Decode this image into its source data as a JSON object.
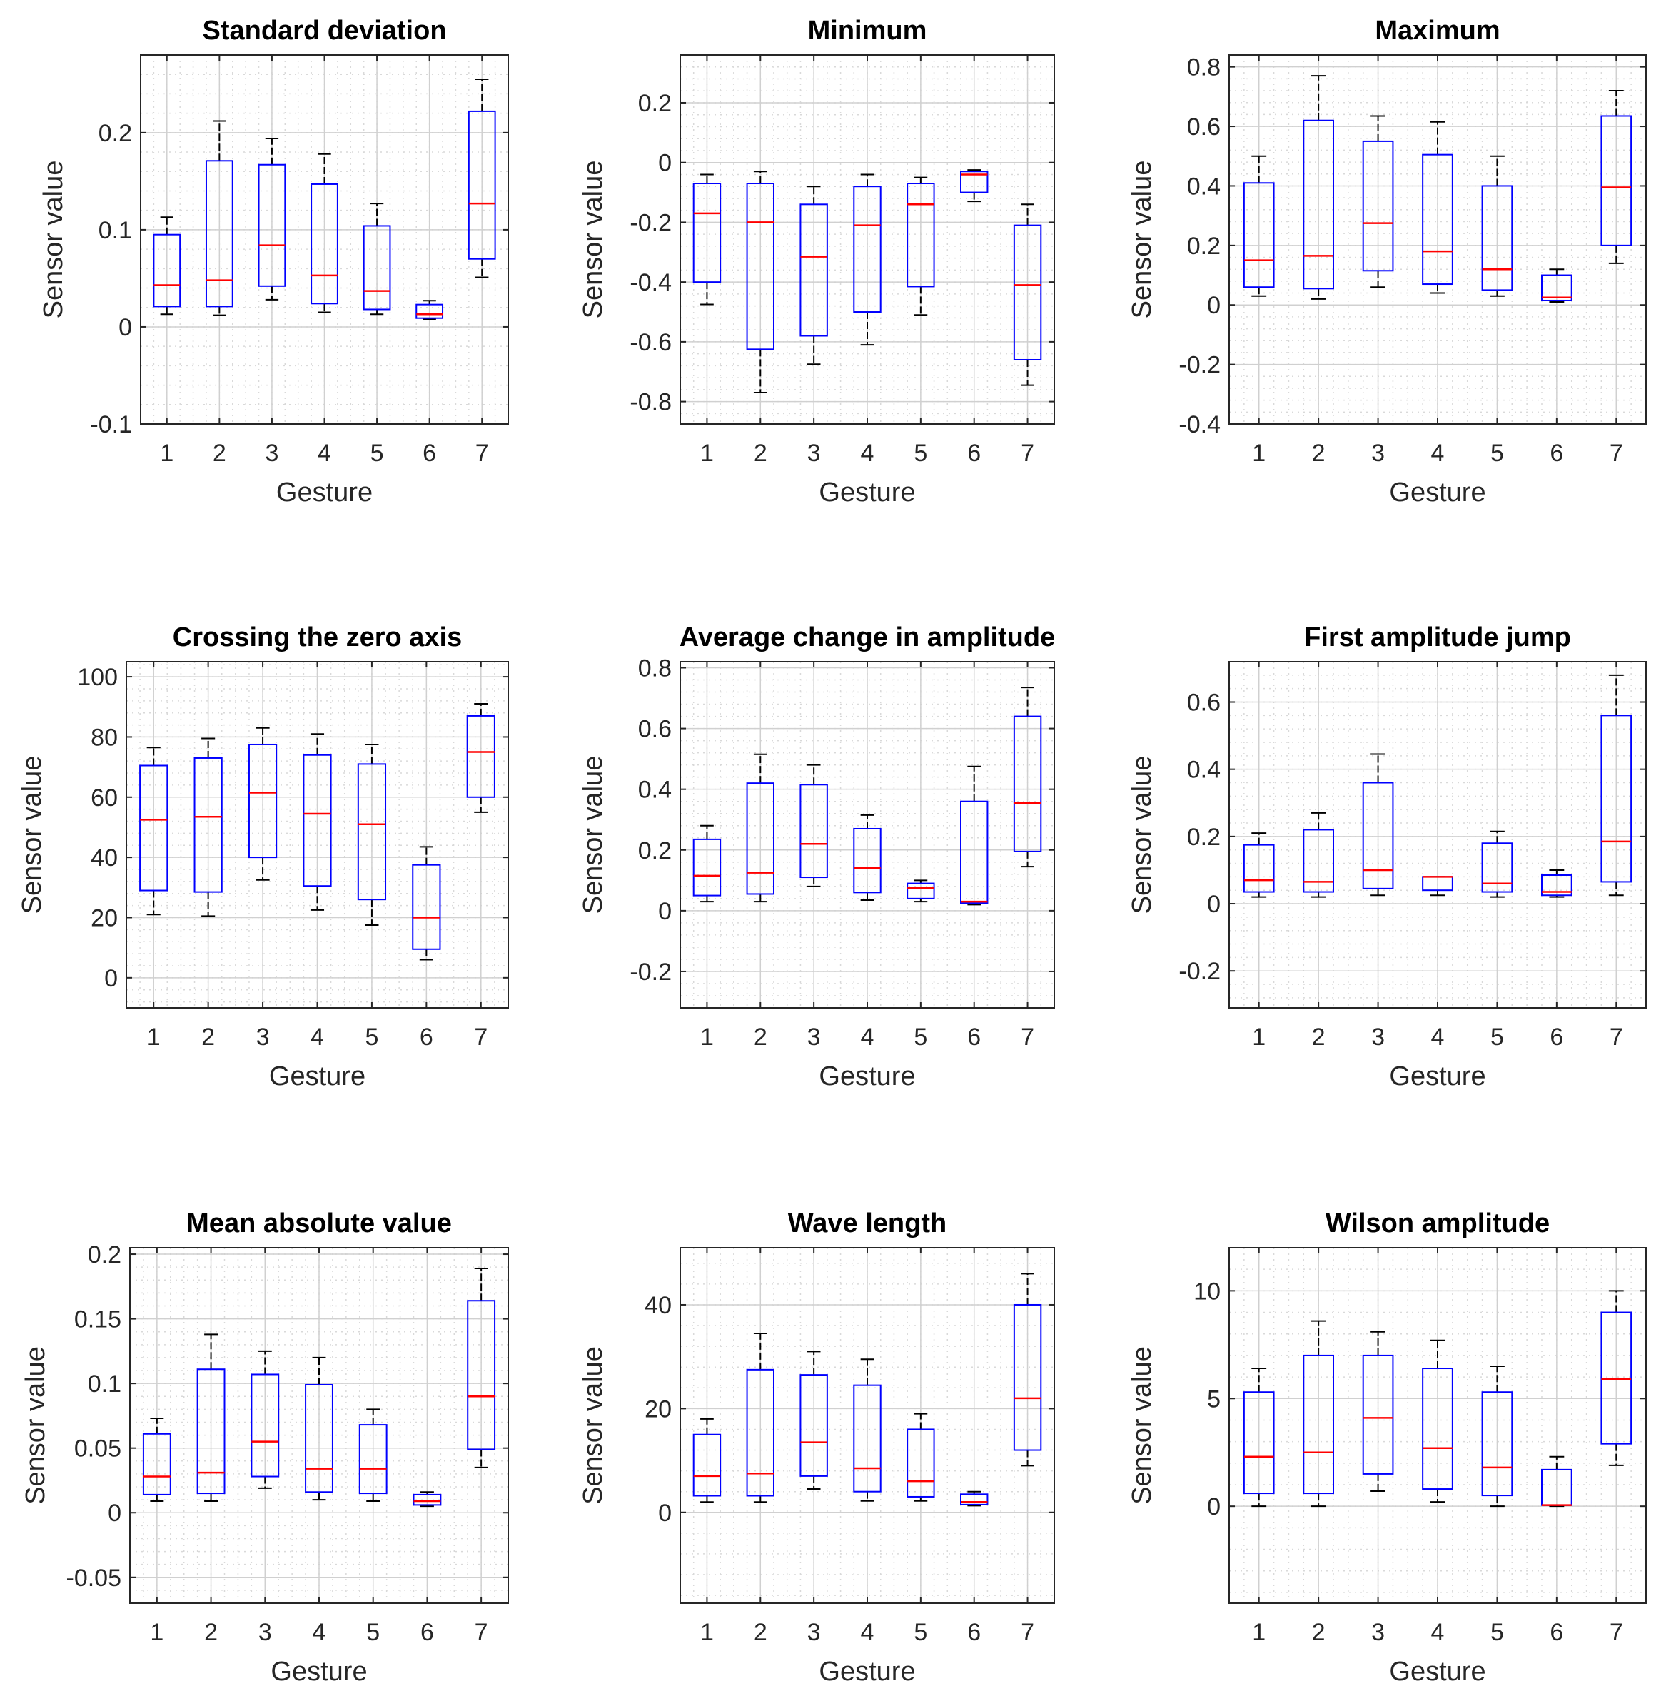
{
  "figure": {
    "ylabel": "Sensor value",
    "xlabel": "Gesture"
  },
  "chart_data": [
    {
      "type": "box",
      "title": "Standard deviation",
      "xlabel": "Gesture",
      "ylabel": "Sensor value",
      "categories": [
        "1",
        "2",
        "3",
        "4",
        "5",
        "6",
        "7"
      ],
      "ylim": [
        -0.1,
        0.28
      ],
      "yticks": [
        -0.1,
        0,
        0.1,
        0.2
      ],
      "ytick_labels": [
        "-0.1",
        "0",
        "0.1",
        "0.2"
      ],
      "boxes": [
        {
          "min": 0.013,
          "q1": 0.021,
          "median": 0.043,
          "q3": 0.095,
          "max": 0.113
        },
        {
          "min": 0.012,
          "q1": 0.021,
          "median": 0.048,
          "q3": 0.171,
          "max": 0.212
        },
        {
          "min": 0.028,
          "q1": 0.042,
          "median": 0.084,
          "q3": 0.167,
          "max": 0.194
        },
        {
          "min": 0.015,
          "q1": 0.024,
          "median": 0.053,
          "q3": 0.147,
          "max": 0.178
        },
        {
          "min": 0.013,
          "q1": 0.018,
          "median": 0.037,
          "q3": 0.104,
          "max": 0.127
        },
        {
          "min": 0.008,
          "q1": 0.009,
          "median": 0.013,
          "q3": 0.023,
          "max": 0.027
        },
        {
          "min": 0.051,
          "q1": 0.07,
          "median": 0.127,
          "q3": 0.222,
          "max": 0.255
        }
      ]
    },
    {
      "type": "box",
      "title": "Minimum",
      "xlabel": "Gesture",
      "ylabel": "Sensor value",
      "categories": [
        "1",
        "2",
        "3",
        "4",
        "5",
        "6",
        "7"
      ],
      "ylim": [
        -0.875,
        0.36
      ],
      "yticks": [
        -0.8,
        -0.6,
        -0.4,
        -0.2,
        0,
        0.2
      ],
      "ytick_labels": [
        "-0.8",
        "-0.6",
        "-0.4",
        "-0.2",
        "0",
        "0.2"
      ],
      "boxes": [
        {
          "min": -0.475,
          "q1": -0.4,
          "median": -0.17,
          "q3": -0.07,
          "max": -0.04
        },
        {
          "min": -0.77,
          "q1": -0.625,
          "median": -0.2,
          "q3": -0.07,
          "max": -0.03
        },
        {
          "min": -0.675,
          "q1": -0.58,
          "median": -0.315,
          "q3": -0.14,
          "max": -0.08
        },
        {
          "min": -0.61,
          "q1": -0.5,
          "median": -0.21,
          "q3": -0.08,
          "max": -0.04
        },
        {
          "min": -0.51,
          "q1": -0.415,
          "median": -0.14,
          "q3": -0.07,
          "max": -0.05
        },
        {
          "min": -0.13,
          "q1": -0.1,
          "median": -0.04,
          "q3": -0.03,
          "max": -0.025
        },
        {
          "min": -0.745,
          "q1": -0.66,
          "median": -0.41,
          "q3": -0.21,
          "max": -0.14
        }
      ]
    },
    {
      "type": "box",
      "title": "Maximum",
      "xlabel": "Gesture",
      "ylabel": "Sensor value",
      "categories": [
        "1",
        "2",
        "3",
        "4",
        "5",
        "6",
        "7"
      ],
      "ylim": [
        -0.4,
        0.84
      ],
      "yticks": [
        -0.4,
        -0.2,
        0,
        0.2,
        0.4,
        0.6,
        0.8
      ],
      "ytick_labels": [
        "-0.4",
        "-0.2",
        "0",
        "0.2",
        "0.4",
        "0.6",
        "0.8"
      ],
      "boxes": [
        {
          "min": 0.03,
          "q1": 0.06,
          "median": 0.15,
          "q3": 0.41,
          "max": 0.5
        },
        {
          "min": 0.02,
          "q1": 0.055,
          "median": 0.165,
          "q3": 0.62,
          "max": 0.77
        },
        {
          "min": 0.06,
          "q1": 0.115,
          "median": 0.275,
          "q3": 0.55,
          "max": 0.635
        },
        {
          "min": 0.04,
          "q1": 0.07,
          "median": 0.18,
          "q3": 0.505,
          "max": 0.615
        },
        {
          "min": 0.03,
          "q1": 0.05,
          "median": 0.12,
          "q3": 0.4,
          "max": 0.5
        },
        {
          "min": 0.01,
          "q1": 0.015,
          "median": 0.025,
          "q3": 0.1,
          "max": 0.12
        },
        {
          "min": 0.14,
          "q1": 0.2,
          "median": 0.395,
          "q3": 0.635,
          "max": 0.72
        }
      ]
    },
    {
      "type": "box",
      "title": "Crossing the zero axis",
      "xlabel": "Gesture",
      "ylabel": "Sensor value",
      "categories": [
        "1",
        "2",
        "3",
        "4",
        "5",
        "6",
        "7"
      ],
      "ylim": [
        -10,
        105
      ],
      "yticks": [
        0,
        20,
        40,
        60,
        80,
        100
      ],
      "ytick_labels": [
        "0",
        "20",
        "40",
        "60",
        "80",
        "100"
      ],
      "boxes": [
        {
          "min": 21,
          "q1": 29,
          "median": 52.5,
          "q3": 70.5,
          "max": 76.5
        },
        {
          "min": 20.5,
          "q1": 28.5,
          "median": 53.5,
          "q3": 73,
          "max": 79.5
        },
        {
          "min": 32.5,
          "q1": 40,
          "median": 61.5,
          "q3": 77.5,
          "max": 83
        },
        {
          "min": 22.5,
          "q1": 30.5,
          "median": 54.5,
          "q3": 74,
          "max": 81
        },
        {
          "min": 17.5,
          "q1": 26,
          "median": 51,
          "q3": 71,
          "max": 77.5
        },
        {
          "min": 6,
          "q1": 9.5,
          "median": 20,
          "q3": 37.5,
          "max": 43.5
        },
        {
          "min": 55,
          "q1": 60,
          "median": 75,
          "q3": 87,
          "max": 91
        }
      ]
    },
    {
      "type": "box",
      "title": "Average change in amplitude",
      "xlabel": "Gesture",
      "ylabel": "Sensor value",
      "categories": [
        "1",
        "2",
        "3",
        "4",
        "5",
        "6",
        "7"
      ],
      "ylim": [
        -0.32,
        0.82
      ],
      "yticks": [
        -0.2,
        0,
        0.2,
        0.4,
        0.6,
        0.8
      ],
      "ytick_labels": [
        "-0.2",
        "0",
        "0.2",
        "0.4",
        "0.6",
        "0.8"
      ],
      "boxes": [
        {
          "min": 0.03,
          "q1": 0.05,
          "median": 0.115,
          "q3": 0.235,
          "max": 0.28
        },
        {
          "min": 0.03,
          "q1": 0.055,
          "median": 0.125,
          "q3": 0.42,
          "max": 0.515
        },
        {
          "min": 0.08,
          "q1": 0.11,
          "median": 0.22,
          "q3": 0.415,
          "max": 0.48
        },
        {
          "min": 0.035,
          "q1": 0.06,
          "median": 0.14,
          "q3": 0.27,
          "max": 0.315
        },
        {
          "min": 0.03,
          "q1": 0.04,
          "median": 0.075,
          "q3": 0.09,
          "max": 0.1
        },
        {
          "min": 0.02,
          "q1": 0.025,
          "median": 0.03,
          "q3": 0.36,
          "max": 0.475
        },
        {
          "min": 0.145,
          "q1": 0.195,
          "median": 0.355,
          "q3": 0.64,
          "max": 0.735
        }
      ]
    },
    {
      "type": "box",
      "title": "First amplitude jump",
      "xlabel": "Gesture",
      "ylabel": "Sensor value",
      "categories": [
        "1",
        "2",
        "3",
        "4",
        "5",
        "6",
        "7"
      ],
      "ylim": [
        -0.31,
        0.72
      ],
      "yticks": [
        -0.2,
        0,
        0.2,
        0.4,
        0.6
      ],
      "ytick_labels": [
        "-0.2",
        "0",
        "0.2",
        "0.4",
        "0.6"
      ],
      "boxes": [
        {
          "min": 0.02,
          "q1": 0.035,
          "median": 0.07,
          "q3": 0.175,
          "max": 0.21
        },
        {
          "min": 0.02,
          "q1": 0.035,
          "median": 0.065,
          "q3": 0.22,
          "max": 0.27
        },
        {
          "min": 0.025,
          "q1": 0.045,
          "median": 0.1,
          "q3": 0.36,
          "max": 0.445
        },
        {
          "min": 0.025,
          "q1": 0.04,
          "median": 0.08,
          "q3": 0.08,
          "max": 0.08
        },
        {
          "min": 0.02,
          "q1": 0.035,
          "median": 0.06,
          "q3": 0.18,
          "max": 0.215
        },
        {
          "min": 0.02,
          "q1": 0.025,
          "median": 0.035,
          "q3": 0.085,
          "max": 0.1
        },
        {
          "min": 0.025,
          "q1": 0.065,
          "median": 0.185,
          "q3": 0.56,
          "max": 0.68
        }
      ]
    },
    {
      "type": "box",
      "title": "Mean absolute value",
      "xlabel": "Gesture",
      "ylabel": "Sensor value",
      "categories": [
        "1",
        "2",
        "3",
        "4",
        "5",
        "6",
        "7"
      ],
      "ylim": [
        -0.07,
        0.205
      ],
      "yticks": [
        -0.05,
        0,
        0.05,
        0.1,
        0.15,
        0.2
      ],
      "ytick_labels": [
        "-0.05",
        "0",
        "0.05",
        "0.1",
        "0.15",
        "0.2"
      ],
      "boxes": [
        {
          "min": 0.009,
          "q1": 0.014,
          "median": 0.028,
          "q3": 0.061,
          "max": 0.073
        },
        {
          "min": 0.009,
          "q1": 0.015,
          "median": 0.031,
          "q3": 0.111,
          "max": 0.138
        },
        {
          "min": 0.019,
          "q1": 0.028,
          "median": 0.055,
          "q3": 0.107,
          "max": 0.125
        },
        {
          "min": 0.01,
          "q1": 0.016,
          "median": 0.034,
          "q3": 0.099,
          "max": 0.12
        },
        {
          "min": 0.009,
          "q1": 0.015,
          "median": 0.034,
          "q3": 0.068,
          "max": 0.08
        },
        {
          "min": 0.005,
          "q1": 0.006,
          "median": 0.009,
          "q3": 0.014,
          "max": 0.016
        },
        {
          "min": 0.035,
          "q1": 0.049,
          "median": 0.09,
          "q3": 0.164,
          "max": 0.189
        }
      ]
    },
    {
      "type": "box",
      "title": "Wave length",
      "xlabel": "Gesture",
      "ylabel": "Sensor value",
      "categories": [
        "1",
        "2",
        "3",
        "4",
        "5",
        "6",
        "7"
      ],
      "ylim": [
        -17.5,
        51
      ],
      "yticks": [
        0,
        20,
        40
      ],
      "ytick_labels": [
        "0",
        "20",
        "40"
      ],
      "boxes": [
        {
          "min": 2,
          "q1": 3.2,
          "median": 7,
          "q3": 15,
          "max": 18
        },
        {
          "min": 2,
          "q1": 3.2,
          "median": 7.5,
          "q3": 27.5,
          "max": 34.5
        },
        {
          "min": 4.5,
          "q1": 7,
          "median": 13.5,
          "q3": 26.5,
          "max": 31
        },
        {
          "min": 2.2,
          "q1": 4,
          "median": 8.5,
          "q3": 24.5,
          "max": 29.5
        },
        {
          "min": 2.2,
          "q1": 3,
          "median": 6,
          "q3": 16,
          "max": 19
        },
        {
          "min": 1.3,
          "q1": 1.5,
          "median": 2,
          "q3": 3.5,
          "max": 4
        },
        {
          "min": 9,
          "q1": 12,
          "median": 22,
          "q3": 40,
          "max": 46
        }
      ]
    },
    {
      "type": "box",
      "title": "Wilson amplitude",
      "xlabel": "Gesture",
      "ylabel": "Sensor value",
      "categories": [
        "1",
        "2",
        "3",
        "4",
        "5",
        "6",
        "7"
      ],
      "ylim": [
        -4.5,
        12
      ],
      "yticks": [
        0,
        5,
        10
      ],
      "ytick_labels": [
        "0",
        "5",
        "10"
      ],
      "boxes": [
        {
          "min": 0,
          "q1": 0.6,
          "median": 2.3,
          "q3": 5.3,
          "max": 6.4
        },
        {
          "min": 0,
          "q1": 0.6,
          "median": 2.5,
          "q3": 7,
          "max": 8.6
        },
        {
          "min": 0.7,
          "q1": 1.5,
          "median": 4.1,
          "q3": 7,
          "max": 8.1
        },
        {
          "min": 0.2,
          "q1": 0.8,
          "median": 2.7,
          "q3": 6.4,
          "max": 7.7
        },
        {
          "min": 0,
          "q1": 0.5,
          "median": 1.8,
          "q3": 5.3,
          "max": 6.5
        },
        {
          "min": 0,
          "q1": 0.05,
          "median": 0.05,
          "q3": 1.7,
          "max": 2.3
        },
        {
          "min": 1.9,
          "q1": 2.9,
          "median": 5.9,
          "q3": 9,
          "max": 10
        }
      ]
    }
  ]
}
